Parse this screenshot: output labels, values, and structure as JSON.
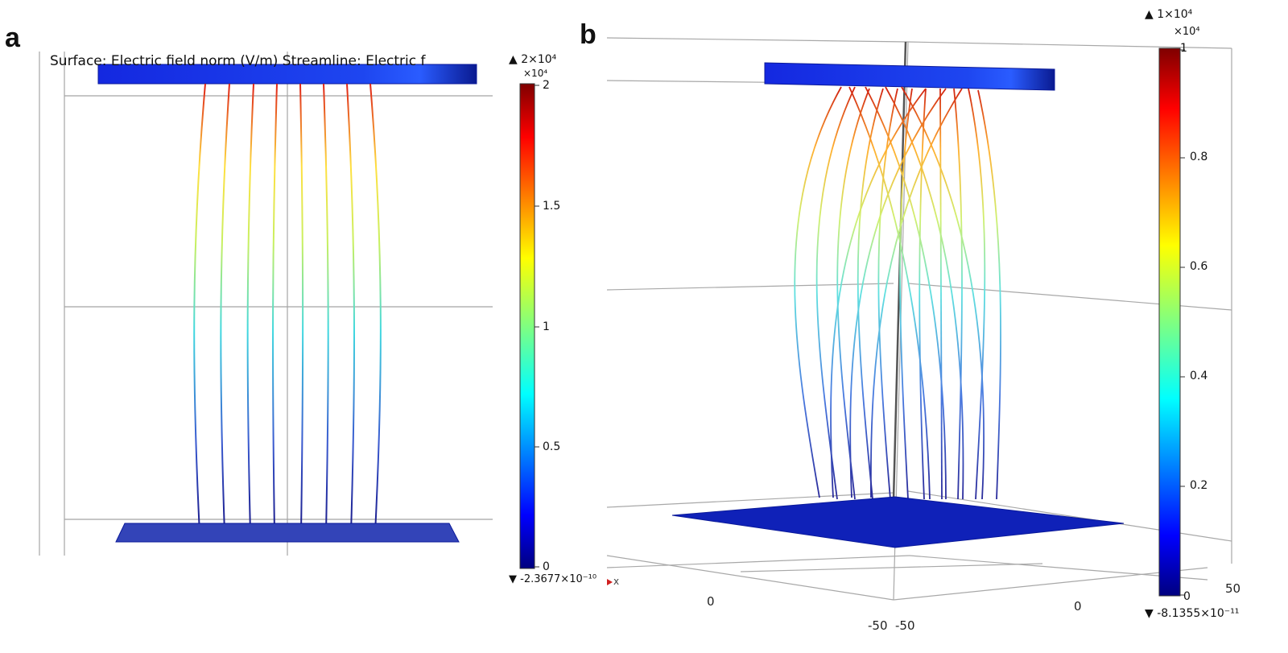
{
  "panel_a": {
    "letter": "a",
    "title": "Surface: Electric field norm (V/m)  Streamline: Electric f",
    "colorbar": {
      "max_label": "▲ 2×10⁴",
      "exponent": "×10⁴",
      "min_label": "▼ -2.3677×10⁻¹⁰",
      "ticks": [
        "2",
        "1.5",
        "1",
        "0.5",
        "0"
      ],
      "axis_marker": "x"
    }
  },
  "panel_b": {
    "letter": "b",
    "colorbar": {
      "max_label": "▲ 1×10⁴",
      "exponent": "×10⁴",
      "min_label": "▼ -8.1355×10⁻¹¹",
      "ticks": [
        "1",
        "0.8",
        "0.6",
        "0.4",
        "0.2",
        "0"
      ]
    },
    "axis_ticks": [
      "0",
      "-50",
      "-50",
      "0",
      "50"
    ]
  },
  "colors": {
    "plate": "#1a2fd6",
    "plate_dark": "#0b1a9a",
    "grid": "#9a9a9a",
    "colormap": [
      "#00007f",
      "#0000ff",
      "#0080ff",
      "#00ffff",
      "#80ff80",
      "#ffff00",
      "#ff8000",
      "#ff0000",
      "#7f0000"
    ]
  }
}
